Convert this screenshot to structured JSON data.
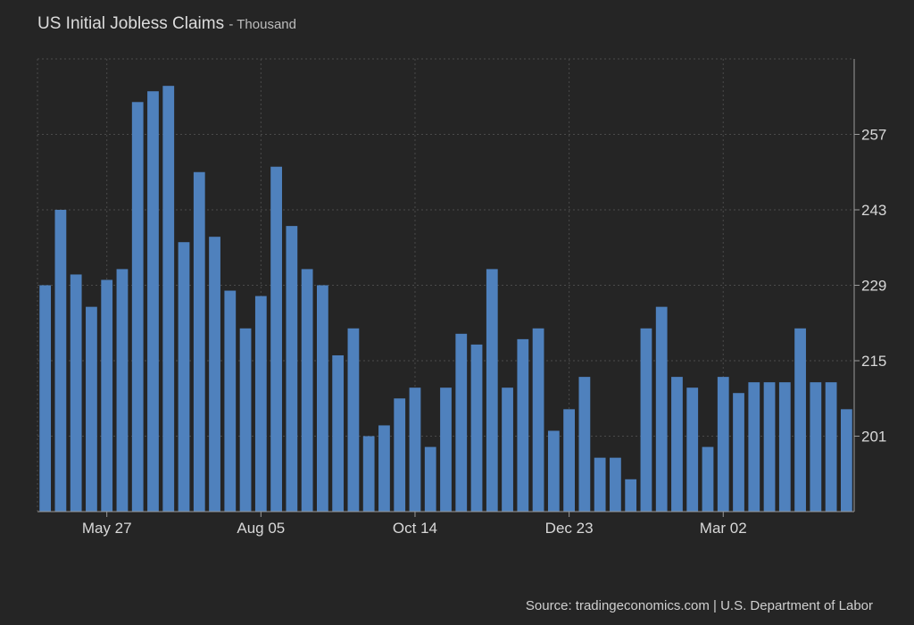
{
  "header": {
    "title": "US Initial Jobless Claims",
    "unit": "- Thousand"
  },
  "footer": {
    "source": "Source: tradingeconomics.com | U.S. Department of Labor"
  },
  "colors": {
    "bar": "#4f81bd",
    "background": "#252525",
    "grid": "#4a4a4a",
    "text": "#d8d8d8"
  },
  "chart_data": {
    "type": "bar",
    "title": "US Initial Jobless Claims",
    "subtitle": "- Thousand",
    "xlabel": "",
    "ylabel": "",
    "ylim": [
      187,
      271
    ],
    "yticks": [
      201,
      215,
      229,
      243,
      257
    ],
    "y_axis_position": "right",
    "grid": true,
    "xtick_labels": [
      {
        "label": "May 27",
        "index": 4
      },
      {
        "label": "Aug 05",
        "index": 14
      },
      {
        "label": "Oct 14",
        "index": 24
      },
      {
        "label": "Dec 23",
        "index": 34
      },
      {
        "label": "Mar 02",
        "index": 44
      }
    ],
    "values": [
      229,
      243,
      231,
      225,
      230,
      232,
      263,
      265,
      266,
      237,
      250,
      238,
      228,
      221,
      227,
      251,
      240,
      232,
      229,
      216,
      221,
      201,
      203,
      208,
      210,
      199,
      210,
      220,
      218,
      232,
      210,
      219,
      221,
      202,
      206,
      212,
      197,
      197,
      193,
      221,
      225,
      212,
      210,
      199,
      212,
      209,
      211,
      211,
      211,
      221,
      211,
      211,
      206
    ]
  }
}
